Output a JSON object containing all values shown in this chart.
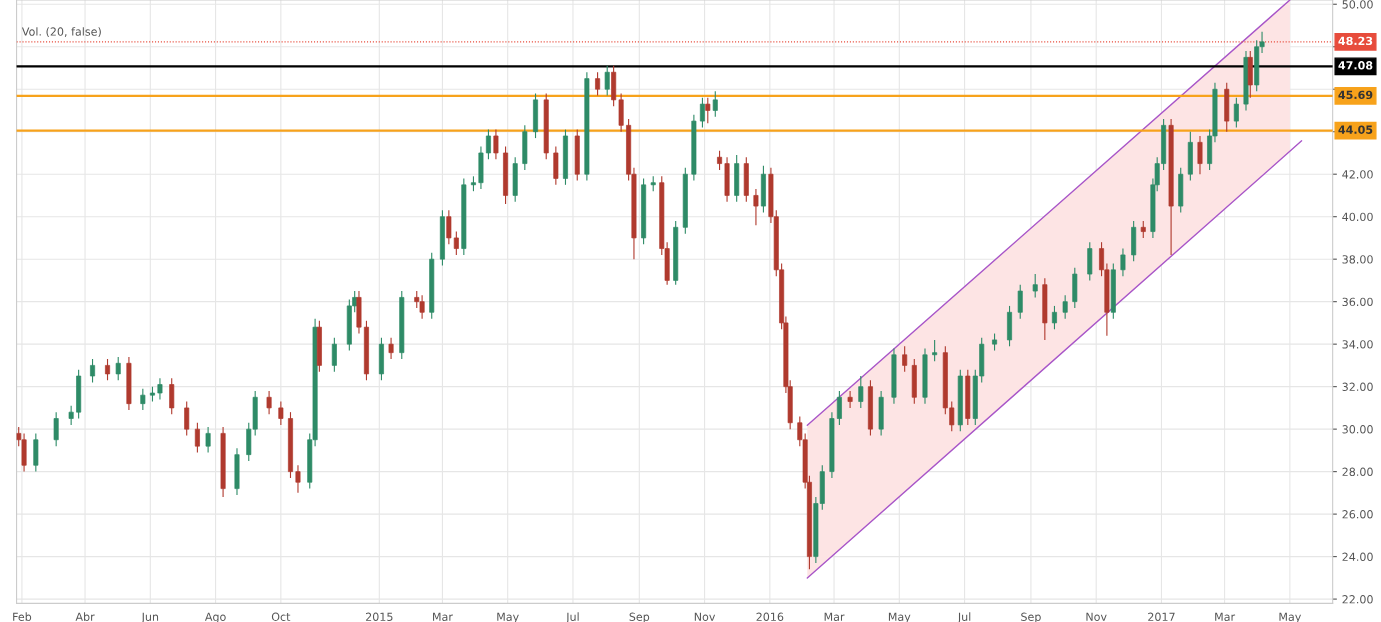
{
  "chart_data": {
    "type": "candlestick",
    "annotations": [
      "Vol. (20, false)"
    ],
    "x": [
      "2014-01-29",
      "2014-02-03",
      "2014-02-14",
      "2014-03-05",
      "2014-03-19",
      "2014-03-26",
      "2014-04-08",
      "2014-04-22",
      "2014-05-02",
      "2014-05-12",
      "2014-05-25",
      "2014-06-03",
      "2014-06-10",
      "2014-06-21",
      "2014-07-05",
      "2014-07-15",
      "2014-07-25",
      "2014-08-08",
      "2014-08-21",
      "2014-09-01",
      "2014-09-07",
      "2014-09-20",
      "2014-10-01",
      "2014-10-10",
      "2014-10-17",
      "2014-10-28",
      "2014-11-02",
      "2014-11-06",
      "2014-11-20",
      "2014-12-04",
      "2014-12-09",
      "2014-12-13",
      "2014-12-20",
      "2015-01-03",
      "2015-01-12",
      "2015-01-22",
      "2015-02-05",
      "2015-02-10",
      "2015-02-19",
      "2015-03-01",
      "2015-03-07",
      "2015-03-14",
      "2015-03-21",
      "2015-03-30",
      "2015-04-06",
      "2015-04-13",
      "2015-04-20",
      "2015-04-29",
      "2015-05-08",
      "2015-05-17",
      "2015-05-27",
      "2015-06-06",
      "2015-06-15",
      "2015-06-24",
      "2015-07-05",
      "2015-07-14",
      "2015-07-24",
      "2015-08-02",
      "2015-08-08",
      "2015-08-15",
      "2015-08-22",
      "2015-08-27",
      "2015-09-05",
      "2015-09-14",
      "2015-09-22",
      "2015-09-27",
      "2015-10-05",
      "2015-10-14",
      "2015-10-22",
      "2015-10-30",
      "2015-11-04",
      "2015-11-11",
      "2015-11-15",
      "2015-11-22",
      "2015-12-01",
      "2015-12-10",
      "2015-12-19",
      "2015-12-26",
      "2016-01-02",
      "2016-01-07",
      "2016-01-12",
      "2016-01-16",
      "2016-01-20",
      "2016-01-29",
      "2016-02-03",
      "2016-02-07",
      "2016-02-13",
      "2016-02-19",
      "2016-02-28",
      "2016-03-06",
      "2016-03-16",
      "2016-03-26",
      "2016-04-04",
      "2016-04-14",
      "2016-04-26",
      "2016-05-06",
      "2016-05-15",
      "2016-05-25",
      "2016-06-03",
      "2016-06-13",
      "2016-06-19",
      "2016-06-27",
      "2016-07-04",
      "2016-07-11",
      "2016-07-17",
      "2016-07-29",
      "2016-08-12",
      "2016-08-22",
      "2016-09-05",
      "2016-09-14",
      "2016-09-23",
      "2016-10-03",
      "2016-10-12",
      "2016-10-26",
      "2016-11-06",
      "2016-11-11",
      "2016-11-17",
      "2016-11-26",
      "2016-12-06",
      "2016-12-15",
      "2016-12-24",
      "2016-12-28",
      "2017-01-03",
      "2017-01-10",
      "2017-01-19",
      "2017-01-28",
      "2017-02-06",
      "2017-02-15",
      "2017-02-20",
      "2017-03-03",
      "2017-03-12",
      "2017-03-21",
      "2017-03-25",
      "2017-03-31",
      "2017-04-05"
    ],
    "ohlc": [
      [
        29.8,
        30.1,
        29.2,
        29.5
      ],
      [
        29.5,
        29.8,
        28.0,
        28.3
      ],
      [
        28.3,
        29.8,
        28.0,
        29.5
      ],
      [
        29.5,
        30.8,
        29.2,
        30.5
      ],
      [
        30.5,
        31.1,
        30.2,
        30.8
      ],
      [
        30.8,
        32.8,
        30.5,
        32.5
      ],
      [
        32.5,
        33.3,
        32.2,
        33.0
      ],
      [
        33.0,
        33.3,
        32.3,
        32.6
      ],
      [
        32.6,
        33.4,
        32.3,
        33.1
      ],
      [
        33.1,
        33.4,
        30.9,
        31.2
      ],
      [
        31.2,
        31.9,
        30.9,
        31.6
      ],
      [
        31.6,
        32.0,
        31.3,
        31.7
      ],
      [
        31.7,
        32.4,
        31.4,
        32.1
      ],
      [
        32.1,
        32.4,
        30.7,
        31.0
      ],
      [
        31.0,
        31.3,
        29.7,
        30.0
      ],
      [
        30.0,
        30.3,
        28.9,
        29.2
      ],
      [
        29.2,
        30.1,
        28.9,
        29.8
      ],
      [
        29.8,
        30.1,
        26.8,
        27.2
      ],
      [
        27.2,
        29.1,
        26.9,
        28.8
      ],
      [
        28.8,
        30.3,
        28.5,
        30.0
      ],
      [
        30.0,
        31.8,
        29.7,
        31.5
      ],
      [
        31.5,
        31.8,
        30.7,
        31.0
      ],
      [
        31.0,
        31.3,
        30.2,
        30.5
      ],
      [
        30.5,
        30.8,
        27.7,
        28.0
      ],
      [
        28.0,
        28.3,
        27.0,
        27.5
      ],
      [
        27.5,
        29.8,
        27.2,
        29.5
      ],
      [
        29.5,
        35.2,
        29.2,
        34.8
      ],
      [
        34.8,
        35.1,
        32.7,
        33.0
      ],
      [
        33.0,
        34.3,
        32.7,
        34.0
      ],
      [
        34.0,
        36.1,
        33.7,
        35.8
      ],
      [
        35.8,
        36.5,
        35.5,
        36.2
      ],
      [
        36.2,
        36.5,
        34.5,
        34.8
      ],
      [
        34.8,
        35.1,
        32.3,
        32.6
      ],
      [
        32.6,
        34.3,
        32.3,
        34.0
      ],
      [
        34.0,
        34.3,
        33.3,
        33.6
      ],
      [
        33.6,
        36.5,
        33.3,
        36.2
      ],
      [
        36.2,
        36.5,
        35.7,
        36.0
      ],
      [
        36.0,
        36.3,
        35.2,
        35.5
      ],
      [
        35.5,
        38.3,
        35.2,
        38.0
      ],
      [
        38.0,
        40.3,
        37.7,
        40.0
      ],
      [
        40.0,
        40.3,
        38.7,
        39.0
      ],
      [
        39.0,
        39.3,
        38.2,
        38.5
      ],
      [
        38.5,
        41.8,
        38.2,
        41.5
      ],
      [
        41.5,
        41.9,
        41.2,
        41.6
      ],
      [
        41.6,
        43.3,
        41.3,
        43.0
      ],
      [
        43.0,
        44.1,
        42.7,
        43.8
      ],
      [
        43.8,
        44.1,
        42.7,
        43.0
      ],
      [
        43.0,
        43.3,
        40.6,
        41.0
      ],
      [
        41.0,
        42.8,
        40.7,
        42.5
      ],
      [
        42.5,
        44.3,
        42.2,
        44.0
      ],
      [
        44.0,
        45.8,
        43.7,
        45.5
      ],
      [
        45.5,
        45.8,
        42.7,
        43.0
      ],
      [
        43.0,
        43.3,
        41.5,
        41.8
      ],
      [
        41.8,
        44.1,
        41.5,
        43.8
      ],
      [
        43.8,
        44.1,
        41.7,
        42.0
      ],
      [
        42.0,
        46.8,
        41.7,
        46.5
      ],
      [
        46.5,
        46.8,
        45.7,
        46.0
      ],
      [
        46.0,
        47.1,
        45.7,
        46.8
      ],
      [
        46.8,
        47.1,
        45.2,
        45.5
      ],
      [
        45.5,
        45.8,
        44.0,
        44.3
      ],
      [
        44.3,
        44.6,
        41.7,
        42.0
      ],
      [
        42.0,
        42.3,
        38.0,
        39.0
      ],
      [
        39.0,
        41.8,
        38.7,
        41.5
      ],
      [
        41.5,
        41.9,
        41.2,
        41.6
      ],
      [
        41.6,
        41.9,
        38.2,
        38.5
      ],
      [
        38.5,
        38.8,
        36.8,
        37.0
      ],
      [
        37.0,
        39.8,
        36.8,
        39.5
      ],
      [
        39.5,
        42.3,
        39.2,
        42.0
      ],
      [
        42.0,
        44.8,
        41.7,
        44.5
      ],
      [
        44.5,
        45.6,
        44.2,
        45.3
      ],
      [
        45.3,
        45.6,
        44.4,
        45.0
      ],
      [
        45.0,
        45.9,
        44.7,
        45.5
      ],
      [
        42.8,
        43.1,
        42.2,
        42.5
      ],
      [
        42.5,
        42.8,
        40.7,
        41.0
      ],
      [
        41.0,
        42.9,
        40.7,
        42.5
      ],
      [
        42.5,
        42.8,
        40.7,
        41.0
      ],
      [
        41.0,
        41.3,
        39.6,
        40.5
      ],
      [
        40.5,
        42.4,
        40.2,
        42.0
      ],
      [
        42.0,
        42.3,
        39.7,
        40.0
      ],
      [
        40.0,
        40.3,
        37.2,
        37.5
      ],
      [
        37.5,
        37.8,
        34.7,
        35.0
      ],
      [
        35.0,
        35.3,
        31.7,
        32.0
      ],
      [
        32.0,
        32.3,
        30.0,
        30.3
      ],
      [
        30.3,
        30.6,
        29.2,
        29.5
      ],
      [
        29.5,
        29.8,
        27.2,
        27.5
      ],
      [
        27.5,
        27.8,
        23.4,
        24.0
      ],
      [
        24.0,
        26.8,
        23.7,
        26.5
      ],
      [
        26.5,
        28.3,
        26.2,
        28.0
      ],
      [
        28.0,
        30.8,
        27.7,
        30.5
      ],
      [
        30.5,
        31.8,
        30.2,
        31.5
      ],
      [
        31.5,
        31.8,
        31.0,
        31.3
      ],
      [
        31.3,
        32.5,
        31.0,
        32.0
      ],
      [
        32.0,
        32.3,
        29.7,
        30.0
      ],
      [
        30.0,
        31.8,
        29.7,
        31.5
      ],
      [
        31.5,
        33.8,
        31.2,
        33.5
      ],
      [
        33.5,
        33.9,
        32.7,
        33.0
      ],
      [
        33.0,
        33.3,
        31.2,
        31.5
      ],
      [
        31.5,
        33.8,
        31.2,
        33.5
      ],
      [
        33.5,
        34.2,
        33.2,
        33.6
      ],
      [
        33.6,
        33.9,
        30.7,
        31.0
      ],
      [
        31.0,
        31.3,
        29.9,
        30.2
      ],
      [
        30.2,
        32.8,
        29.9,
        32.5
      ],
      [
        32.5,
        32.8,
        30.2,
        30.5
      ],
      [
        30.5,
        32.8,
        30.2,
        32.5
      ],
      [
        32.5,
        34.3,
        32.2,
        34.0
      ],
      [
        34.0,
        34.5,
        33.7,
        34.2
      ],
      [
        34.2,
        35.8,
        33.9,
        35.5
      ],
      [
        35.5,
        36.8,
        35.2,
        36.5
      ],
      [
        36.5,
        37.3,
        36.2,
        36.8
      ],
      [
        36.8,
        37.1,
        34.2,
        35.0
      ],
      [
        35.0,
        35.8,
        34.7,
        35.5
      ],
      [
        35.5,
        36.3,
        35.2,
        36.0
      ],
      [
        36.0,
        37.6,
        35.7,
        37.3
      ],
      [
        37.3,
        38.8,
        37.0,
        38.5
      ],
      [
        38.5,
        38.8,
        37.2,
        37.5
      ],
      [
        37.5,
        37.8,
        34.4,
        35.5
      ],
      [
        35.5,
        37.8,
        35.2,
        37.5
      ],
      [
        37.5,
        38.5,
        37.2,
        38.2
      ],
      [
        38.2,
        39.8,
        37.9,
        39.5
      ],
      [
        39.5,
        39.8,
        39.0,
        39.3
      ],
      [
        39.3,
        41.8,
        39.0,
        41.5
      ],
      [
        41.5,
        42.8,
        41.2,
        42.5
      ],
      [
        42.5,
        44.6,
        42.2,
        44.3
      ],
      [
        44.3,
        44.6,
        38.2,
        40.5
      ],
      [
        40.5,
        42.3,
        40.2,
        42.0
      ],
      [
        42.0,
        44.0,
        41.7,
        43.5
      ],
      [
        43.5,
        43.8,
        42.0,
        42.5
      ],
      [
        42.5,
        44.1,
        42.2,
        43.8
      ],
      [
        43.8,
        46.3,
        43.5,
        46.0
      ],
      [
        46.0,
        46.3,
        44.0,
        44.5
      ],
      [
        44.5,
        45.6,
        44.2,
        45.3
      ],
      [
        45.3,
        47.8,
        45.0,
        47.5
      ],
      [
        47.5,
        47.8,
        45.6,
        46.2
      ],
      [
        46.2,
        48.3,
        45.9,
        48.0
      ],
      [
        48.0,
        48.7,
        47.7,
        48.23
      ]
    ],
    "series": [
      {
        "type": "line",
        "color": "#a855c8",
        "x": [
          "2016-02-05",
          "2017-05-01"
        ],
        "values": [
          30.18,
          50.2
        ],
        "lower": [
          22.99,
          43.08
        ],
        "upper": [
          30.18,
          50.2
        ]
      },
      {
        "type": "line",
        "color": "#a855c8",
        "x": [
          "2016-02-05",
          "2017-05-12"
        ],
        "values": [
          22.99,
          43.57
        ]
      }
    ],
    "ref_lines": [
      {
        "axis": "y",
        "value": 48.23,
        "label": "48.23",
        "color": "#e74c3c",
        "line_style": "dotted"
      },
      {
        "axis": "y",
        "value": 47.08,
        "label": "47.08",
        "color": "#000000",
        "line_style": "solid"
      },
      {
        "axis": "y",
        "value": 45.69,
        "label": "45.69",
        "color": "#f7a21b",
        "line_style": "solid"
      },
      {
        "axis": "y",
        "value": 44.05,
        "label": "44.05",
        "color": "#f7a21b",
        "line_style": "solid"
      }
    ],
    "xlim": [
      "2014-01-27",
      "2017-06-10"
    ],
    "xticks": [
      {
        "value": "2014-02-01",
        "label": "Feb"
      },
      {
        "value": "2014-04-01",
        "label": "Abr"
      },
      {
        "value": "2014-06-01",
        "label": "Jun"
      },
      {
        "value": "2014-08-01",
        "label": "Ago"
      },
      {
        "value": "2014-10-01",
        "label": "Oct"
      },
      {
        "value": "2015-01-01",
        "label": "2015"
      },
      {
        "value": "2015-03-01",
        "label": "Mar"
      },
      {
        "value": "2015-05-01",
        "label": "May"
      },
      {
        "value": "2015-07-01",
        "label": "Jul"
      },
      {
        "value": "2015-09-01",
        "label": "Sep"
      },
      {
        "value": "2015-11-01",
        "label": "Nov"
      },
      {
        "value": "2016-01-01",
        "label": "2016"
      },
      {
        "value": "2016-03-01",
        "label": "Mar"
      },
      {
        "value": "2016-05-01",
        "label": "May"
      },
      {
        "value": "2016-07-01",
        "label": "Jul"
      },
      {
        "value": "2016-09-01",
        "label": "Sep"
      },
      {
        "value": "2016-11-01",
        "label": "Nov"
      },
      {
        "value": "2017-01-01",
        "label": "2017"
      },
      {
        "value": "2017-03-01",
        "label": "Mar"
      },
      {
        "value": "2017-05-01",
        "label": "May"
      }
    ],
    "ylim": [
      21.8,
      50.2
    ],
    "yticks": [
      {
        "value": 22,
        "label": "22.00"
      },
      {
        "value": 24,
        "label": "24.00"
      },
      {
        "value": 26,
        "label": "26.00"
      },
      {
        "value": 28,
        "label": "28.00"
      },
      {
        "value": 30,
        "label": "30.00"
      },
      {
        "value": 32,
        "label": "32.00"
      },
      {
        "value": 34,
        "label": "34.00"
      },
      {
        "value": 36,
        "label": "36.00"
      },
      {
        "value": 38,
        "label": "38.00"
      },
      {
        "value": 40,
        "label": "40.00"
      },
      {
        "value": 42,
        "label": "42.00"
      },
      {
        "value": 44,
        "label": null
      },
      {
        "value": 46,
        "label": null
      },
      {
        "value": 48,
        "label": null
      },
      {
        "value": 50,
        "label": "50.00"
      }
    ],
    "grid": true
  }
}
